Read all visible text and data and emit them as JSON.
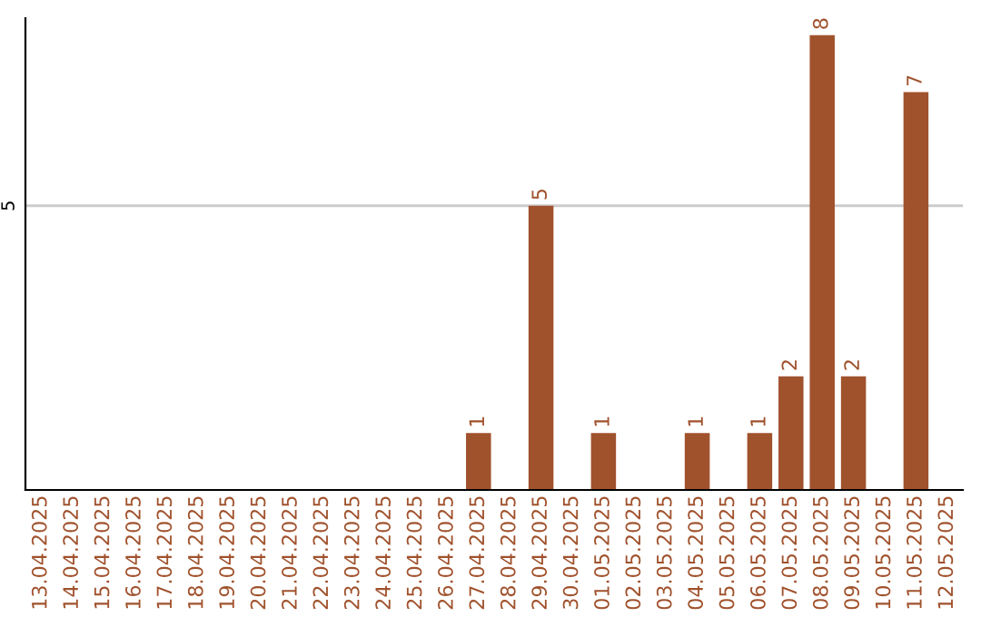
{
  "chart_data": {
    "type": "bar",
    "categories": [
      "13.04.2025",
      "14.04.2025",
      "15.04.2025",
      "16.04.2025",
      "17.04.2025",
      "18.04.2025",
      "19.04.2025",
      "20.04.2025",
      "21.04.2025",
      "22.04.2025",
      "23.04.2025",
      "24.04.2025",
      "25.04.2025",
      "26.04.2025",
      "27.04.2025",
      "28.04.2025",
      "29.04.2025",
      "30.04.2025",
      "01.05.2025",
      "02.05.2025",
      "03.05.2025",
      "04.05.2025",
      "05.05.2025",
      "06.05.2025",
      "07.05.2025",
      "08.05.2025",
      "09.05.2025",
      "10.05.2025",
      "11.05.2025",
      "12.05.2025"
    ],
    "values": [
      null,
      null,
      null,
      null,
      null,
      null,
      null,
      null,
      null,
      null,
      null,
      null,
      null,
      null,
      1,
      null,
      5,
      null,
      1,
      null,
      null,
      1,
      null,
      1,
      2,
      8,
      2,
      null,
      7,
      null
    ],
    "data_labels": true,
    "color": "#a0522d",
    "ylim": [
      0,
      8.3
    ],
    "ref_lines": [
      {
        "axis": "y",
        "value": 5,
        "label": "5",
        "color": "#cccccc"
      }
    ],
    "legend": false
  }
}
